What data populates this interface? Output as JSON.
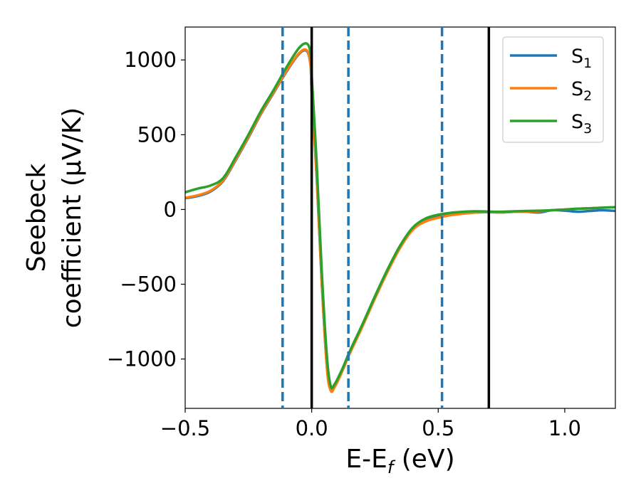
{
  "chart_data": {
    "type": "line",
    "xlabel": {
      "prefix": "E-E",
      "sub": "f",
      "suffix": " (eV)"
    },
    "ylabel": {
      "line1": "Seebeck",
      "line2": "coefficient  (μV/K)"
    },
    "xlim": [
      -0.5,
      1.2
    ],
    "ylim": [
      -1330,
      1220
    ],
    "xticks": [
      -0.5,
      0.0,
      0.5,
      1.0
    ],
    "xtick_labels": [
      "−0.5",
      "0.0",
      "0.5",
      "1.0"
    ],
    "yticks": [
      -1000,
      -500,
      0,
      500,
      1000
    ],
    "ytick_labels": [
      "−1000",
      "−500",
      "0",
      "500",
      "1000"
    ],
    "grid": false,
    "legend_position": "top-right",
    "vlines_dashed": {
      "color": "#1f77b4",
      "x": [
        -0.115,
        0.145,
        0.515
      ]
    },
    "vlines_solid": {
      "color": "#000000",
      "x": [
        0.0,
        0.7
      ]
    },
    "series": [
      {
        "name": "S",
        "sub": "1",
        "color": "#1f77b4",
        "x": [
          -0.5,
          -0.45,
          -0.4,
          -0.35,
          -0.3,
          -0.25,
          -0.2,
          -0.15,
          -0.1,
          -0.05,
          -0.02,
          -0.005,
          0.0,
          0.02,
          0.04,
          0.06,
          0.075,
          0.09,
          0.12,
          0.15,
          0.2,
          0.25,
          0.3,
          0.35,
          0.4,
          0.45,
          0.5,
          0.55,
          0.6,
          0.65,
          0.7,
          0.75,
          0.8,
          0.85,
          0.9,
          0.95,
          1.0,
          1.05,
          1.1,
          1.15,
          1.2
        ],
        "y": [
          75,
          90,
          120,
          190,
          330,
          480,
          640,
          780,
          920,
          1040,
          1060,
          970,
          780,
          200,
          -500,
          -1050,
          -1200,
          -1180,
          -1080,
          -960,
          -780,
          -590,
          -410,
          -250,
          -130,
          -75,
          -50,
          -35,
          -25,
          -20,
          -18,
          -20,
          -15,
          -15,
          -20,
          -5,
          -8,
          -15,
          -10,
          -5,
          -10
        ]
      },
      {
        "name": "S",
        "sub": "2",
        "color": "#ff7f0e",
        "x": [
          -0.5,
          -0.45,
          -0.4,
          -0.35,
          -0.3,
          -0.25,
          -0.2,
          -0.15,
          -0.1,
          -0.05,
          -0.02,
          -0.005,
          0.0,
          0.02,
          0.04,
          0.06,
          0.075,
          0.09,
          0.12,
          0.15,
          0.2,
          0.25,
          0.3,
          0.35,
          0.4,
          0.45,
          0.5,
          0.55,
          0.6,
          0.65,
          0.7,
          0.75,
          0.8,
          0.85,
          0.9,
          0.95,
          1.0,
          1.05,
          1.1,
          1.15,
          1.2
        ],
        "y": [
          78,
          95,
          125,
          195,
          335,
          485,
          645,
          785,
          925,
          1045,
          1065,
          975,
          785,
          210,
          -495,
          -1060,
          -1210,
          -1190,
          -1085,
          -965,
          -785,
          -595,
          -415,
          -255,
          -135,
          -80,
          -55,
          -38,
          -28,
          -20,
          -18,
          -20,
          -16,
          -14,
          -12,
          -5,
          0,
          5,
          8,
          12,
          15
        ]
      },
      {
        "name": "S",
        "sub": "3",
        "color": "#2ca02c",
        "x": [
          -0.5,
          -0.45,
          -0.4,
          -0.35,
          -0.3,
          -0.25,
          -0.2,
          -0.15,
          -0.1,
          -0.05,
          -0.02,
          -0.005,
          0.0,
          0.02,
          0.04,
          0.06,
          0.075,
          0.09,
          0.12,
          0.15,
          0.2,
          0.25,
          0.3,
          0.35,
          0.4,
          0.45,
          0.5,
          0.55,
          0.6,
          0.65,
          0.7,
          0.75,
          0.8,
          0.85,
          0.9,
          0.95,
          1.0,
          1.05,
          1.1,
          1.15,
          1.2
        ],
        "y": [
          115,
          140,
          160,
          210,
          350,
          500,
          660,
          800,
          950,
          1080,
          1110,
          1050,
          900,
          300,
          -420,
          -980,
          -1180,
          -1170,
          -1070,
          -950,
          -770,
          -580,
          -400,
          -240,
          -120,
          -60,
          -35,
          -22,
          -15,
          -12,
          -14,
          -15,
          -12,
          -10,
          -8,
          -5,
          0,
          5,
          8,
          12,
          15
        ]
      }
    ]
  }
}
